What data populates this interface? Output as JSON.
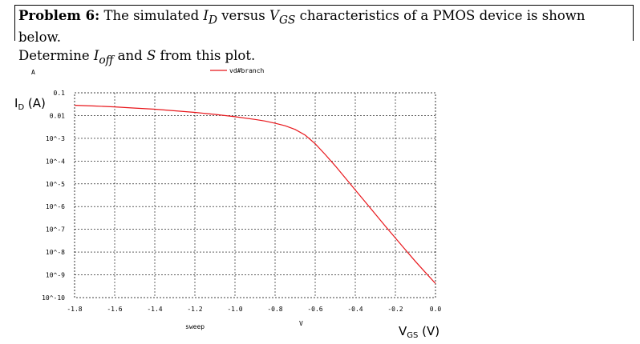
{
  "problem": {
    "label": "Problem 6:",
    "line1_prefix": "The simulated ",
    "id_sym": "I",
    "id_sub": "D",
    "versus": " versus ",
    "vgs_sym": "V",
    "vgs_sub": "GS",
    "line1_suffix": " characteristics of a PMOS device is shown below.",
    "line2_prefix": "Determine ",
    "ioff_sym": "I",
    "ioff_sub": "off",
    "and": " and ",
    "s_sym": "S",
    "line2_suffix": " from this plot."
  },
  "chart_data": {
    "type": "line",
    "unit_top": "A",
    "ylabel_main": "I",
    "ylabel_sub": "D",
    "ylabel_unit": " (A)",
    "xlabel_main": "V",
    "xlabel_sub": "GS",
    "xlabel_unit": " (V)",
    "x_axis_name": "sweep",
    "x_unit": "V",
    "legend": "vd#branch",
    "line_color": "#e8161b",
    "x_ticks": [
      "-1.8",
      "-1.6",
      "-1.4",
      "-1.2",
      "-1.0",
      "-0.8",
      "-0.6",
      "-0.4",
      "-0.2",
      "0.0"
    ],
    "y_ticks": [
      "0.1",
      "0.01",
      "10^-3",
      "10^-4",
      "10^-5",
      "10^-6",
      "10^-7",
      "10^-8",
      "10^-9",
      "10^-10"
    ],
    "y_scale": "log",
    "xlim": [
      -1.8,
      0.0
    ],
    "ylim_log10": [
      -10,
      -1
    ],
    "grid": true,
    "legend_position": "top-center",
    "series": [
      {
        "x": [
          -1.8,
          -1.7,
          -1.6,
          -1.5,
          -1.4,
          -1.3,
          -1.2,
          -1.1,
          -1.0,
          -0.9,
          -0.85,
          -0.8,
          -0.75,
          -0.7,
          -0.65,
          -0.6,
          -0.55,
          -0.5,
          -0.45,
          -0.4,
          -0.35,
          -0.3,
          -0.25,
          -0.2,
          -0.15,
          -0.1,
          -0.05,
          0.0
        ],
        "log10_y": [
          -1.55,
          -1.58,
          -1.62,
          -1.67,
          -1.72,
          -1.79,
          -1.86,
          -1.95,
          -2.05,
          -2.17,
          -2.24,
          -2.34,
          -2.45,
          -2.61,
          -2.86,
          -3.24,
          -3.71,
          -4.21,
          -4.74,
          -5.27,
          -5.8,
          -6.33,
          -6.86,
          -7.38,
          -7.9,
          -8.41,
          -8.9,
          -9.38
        ]
      }
    ]
  }
}
